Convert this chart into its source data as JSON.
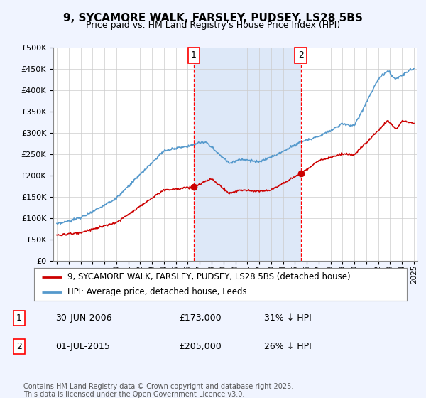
{
  "title": "9, SYCAMORE WALK, FARSLEY, PUDSEY, LS28 5BS",
  "subtitle": "Price paid vs. HM Land Registry's House Price Index (HPI)",
  "ylim": [
    0,
    500000
  ],
  "ytick_values": [
    0,
    50000,
    100000,
    150000,
    200000,
    250000,
    300000,
    350000,
    400000,
    450000,
    500000
  ],
  "sale1_date": "30-JUN-2006",
  "sale1_price": 173000,
  "sale1_pct": "31% ↓ HPI",
  "sale1_year": 2006.5,
  "sale2_date": "01-JUL-2015",
  "sale2_price": 205000,
  "sale2_pct": "26% ↓ HPI",
  "sale2_year": 2015.5,
  "legend_red": "9, SYCAMORE WALK, FARSLEY, PUDSEY, LS28 5BS (detached house)",
  "legend_blue": "HPI: Average price, detached house, Leeds",
  "footer": "Contains HM Land Registry data © Crown copyright and database right 2025.\nThis data is licensed under the Open Government Licence v3.0.",
  "bg_color": "#f0f4ff",
  "plot_bg": "#ffffff",
  "highlight_bg": "#dde8f8",
  "red_color": "#cc0000",
  "blue_color": "#5599cc",
  "xmin": 1995,
  "xmax": 2025
}
